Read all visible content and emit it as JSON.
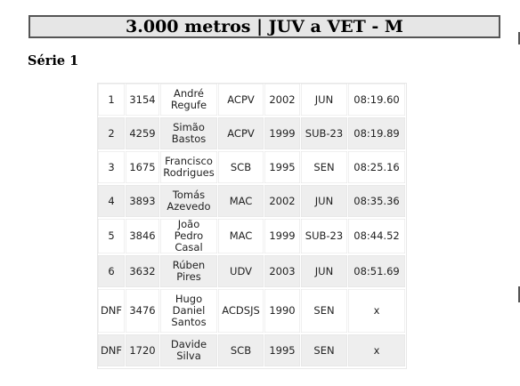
{
  "event_title": "3.000 metros | JUV a VET - M",
  "section_title": "Série 1",
  "results": [
    {
      "pos": "1",
      "bib": "3154",
      "name": "André Regufe",
      "club": "ACPV",
      "year": "2002",
      "category": "JUN",
      "time": "08:19.60"
    },
    {
      "pos": "2",
      "bib": "4259",
      "name": "Simão Bastos",
      "club": "ACPV",
      "year": "1999",
      "category": "SUB-23",
      "time": "08:19.89"
    },
    {
      "pos": "3",
      "bib": "1675",
      "name": "Francisco Rodrigues",
      "club": "SCB",
      "year": "1995",
      "category": "SEN",
      "time": "08:25.16"
    },
    {
      "pos": "4",
      "bib": "3893",
      "name": "Tomás Azevedo",
      "club": "MAC",
      "year": "2002",
      "category": "JUN",
      "time": "08:35.36"
    },
    {
      "pos": "5",
      "bib": "3846",
      "name": "João Pedro Casal",
      "club": "MAC",
      "year": "1999",
      "category": "SUB-23",
      "time": "08:44.52"
    },
    {
      "pos": "6",
      "bib": "3632",
      "name": "Rúben Pires",
      "club": "UDV",
      "year": "2003",
      "category": "JUN",
      "time": "08:51.69"
    },
    {
      "pos": "DNF",
      "bib": "3476",
      "name": "Hugo Daniel Santos",
      "club": "ACDSJS",
      "year": "1990",
      "category": "SEN",
      "time": "x"
    },
    {
      "pos": "DNF",
      "bib": "1720",
      "name": "Davide Silva",
      "club": "SCB",
      "year": "1995",
      "category": "SEN",
      "time": "x"
    }
  ]
}
